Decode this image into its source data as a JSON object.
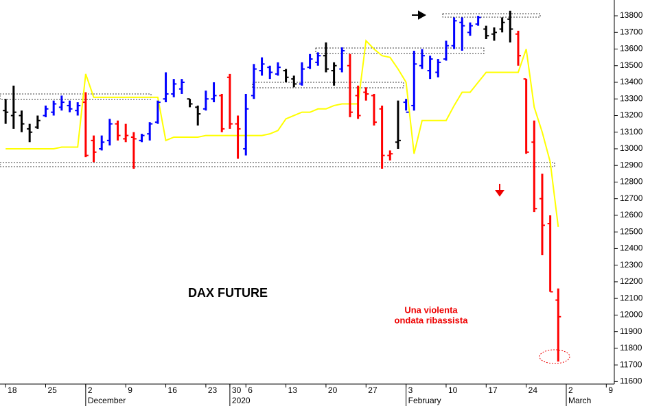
{
  "chart_data": {
    "type": "ohlc",
    "title": "DAX FUTURE",
    "annotation": [
      "Una violenta",
      "ondata ribassista"
    ],
    "x": [
      0,
      1,
      2,
      3,
      4,
      5,
      6,
      7,
      8,
      9,
      10,
      11,
      12,
      13,
      14,
      15,
      16,
      17,
      18,
      19,
      20,
      21,
      22,
      23,
      24,
      25,
      26,
      27,
      28,
      29,
      30,
      31,
      32,
      33,
      34,
      35,
      36,
      37,
      38,
      39,
      40,
      41,
      42,
      43,
      44,
      45,
      46,
      47,
      48,
      49,
      50,
      51,
      52,
      53,
      54,
      55,
      56,
      57,
      58,
      59,
      60,
      61,
      62,
      63,
      64,
      65,
      66,
      67,
      68,
      69
    ],
    "open": [
      13230,
      13200,
      13200,
      13120,
      13130,
      13200,
      13220,
      13250,
      13260,
      13230,
      13280,
      13050,
      13000,
      13050,
      13150,
      13060,
      13070,
      13050,
      13090,
      13160,
      13300,
      13330,
      13360,
      13300,
      13250,
      13240,
      13300,
      13320,
      13430,
      13150,
      13000,
      13320,
      13470,
      13490,
      13450,
      13470,
      13420,
      13390,
      13490,
      13520,
      13560,
      13470,
      13480,
      13500,
      13320,
      13340,
      13320,
      13240,
      12960,
      13040,
      13280,
      13260,
      13500,
      13470,
      13460,
      13540,
      13620,
      13760,
      13700,
      13750,
      13720,
      13690,
      13720,
      13780,
      13690,
      13420,
      13040,
      12700,
      12550,
      12090
    ],
    "high": [
      13300,
      13380,
      13230,
      13150,
      13200,
      13260,
      13290,
      13320,
      13290,
      13280,
      13340,
      13080,
      13080,
      13180,
      13170,
      13150,
      13100,
      13090,
      13160,
      13290,
      13460,
      13420,
      13420,
      13300,
      13260,
      13350,
      13400,
      13330,
      13450,
      13200,
      13330,
      13510,
      13550,
      13500,
      13520,
      13480,
      13440,
      13520,
      13570,
      13580,
      13640,
      13520,
      13610,
      13570,
      13380,
      13370,
      13330,
      13260,
      12990,
      13290,
      13300,
      13590,
      13600,
      13560,
      13540,
      13650,
      13790,
      13790,
      13760,
      13800,
      13740,
      13730,
      13790,
      13830,
      13710,
      13420,
      13170,
      12850,
      12600,
      12160
    ],
    "low": [
      13150,
      13120,
      13100,
      13040,
      13120,
      13190,
      13200,
      13230,
      13220,
      13200,
      12950,
      12920,
      12990,
      13020,
      13050,
      13040,
      12880,
      13040,
      13050,
      13150,
      13280,
      13310,
      13330,
      13250,
      13140,
      13230,
      13280,
      13100,
      13120,
      12940,
      12960,
      13300,
      13440,
      13420,
      13440,
      13400,
      13370,
      13380,
      13480,
      13500,
      13460,
      13380,
      13460,
      13190,
      13180,
      13290,
      13140,
      12880,
      12930,
      13000,
      13230,
      13230,
      13480,
      13420,
      13430,
      13530,
      13600,
      13590,
      13680,
      13740,
      13660,
      13650,
      13700,
      13640,
      13500,
      12970,
      12620,
      12360,
      12140,
      11720
    ],
    "close": [
      13220,
      13220,
      13150,
      13100,
      13170,
      13240,
      13270,
      13280,
      13240,
      13260,
      12960,
      12980,
      13040,
      13150,
      13080,
      13080,
      13060,
      13080,
      13150,
      13280,
      13330,
      13390,
      13400,
      13270,
      13210,
      13300,
      13320,
      13120,
      13150,
      13120,
      13240,
      13480,
      13510,
      13460,
      13490,
      13430,
      13390,
      13480,
      13540,
      13560,
      13480,
      13500,
      13590,
      13220,
      13200,
      13330,
      13160,
      12960,
      12970,
      13050,
      13220,
      13510,
      13560,
      13540,
      13520,
      13620,
      13770,
      13740,
      13740,
      13790,
      13680,
      13700,
      13760,
      13720,
      13560,
      12980,
      12640,
      12540,
      12140,
      11990
    ],
    "colors": [
      "#000000",
      "#000000",
      "#000000",
      "#000000",
      "#000000",
      "#0000ff",
      "#0000ff",
      "#0000ff",
      "#0000ff",
      "#0000ff",
      "#ff0000",
      "#ff0000",
      "#0000ff",
      "#0000ff",
      "#ff0000",
      "#ff0000",
      "#ff0000",
      "#0000ff",
      "#0000ff",
      "#0000ff",
      "#0000ff",
      "#0000ff",
      "#0000ff",
      "#000000",
      "#000000",
      "#0000ff",
      "#0000ff",
      "#ff0000",
      "#ff0000",
      "#ff0000",
      "#0000ff",
      "#0000ff",
      "#0000ff",
      "#0000ff",
      "#0000ff",
      "#000000",
      "#000000",
      "#0000ff",
      "#0000ff",
      "#0000ff",
      "#000000",
      "#000000",
      "#0000ff",
      "#ff0000",
      "#ff0000",
      "#ff0000",
      "#ff0000",
      "#ff0000",
      "#ff0000",
      "#000000",
      "#0000ff",
      "#0000ff",
      "#0000ff",
      "#0000ff",
      "#0000ff",
      "#0000ff",
      "#0000ff",
      "#0000ff",
      "#0000ff",
      "#0000ff",
      "#000000",
      "#000000",
      "#000000",
      "#000000",
      "#ff0000",
      "#ff0000",
      "#ff0000",
      "#ff0000",
      "#ff0000",
      "#ff0000"
    ],
    "overlay": {
      "type": "line",
      "color": "#ffff00",
      "values": [
        13000,
        13000,
        13000,
        13000,
        13000,
        13000,
        13000,
        13010,
        13010,
        13010,
        13450,
        13310,
        13310,
        13310,
        13310,
        13310,
        13310,
        13310,
        13310,
        13310,
        13050,
        13070,
        13070,
        13070,
        13070,
        13080,
        13080,
        13080,
        13080,
        13080,
        13080,
        13080,
        13080,
        13090,
        13110,
        13180,
        13200,
        13220,
        13220,
        13240,
        13240,
        13260,
        13270,
        13270,
        13270,
        13650,
        13600,
        13560,
        13550,
        13480,
        13400,
        12970,
        13170,
        13170,
        13170,
        13170,
        13260,
        13340,
        13340,
        13400,
        13460,
        13460,
        13460,
        13460,
        13460,
        13600,
        13250,
        13100,
        12920,
        12530
      ]
    },
    "xlim": [
      -0.7,
      76
    ],
    "xticks": [
      {
        "value": 0,
        "label": "18"
      },
      {
        "value": 5,
        "label": "25"
      },
      {
        "value": 10,
        "label": "2"
      },
      {
        "value": 15,
        "label": "9"
      },
      {
        "value": 20,
        "label": "16"
      },
      {
        "value": 25,
        "label": "23"
      },
      {
        "value": 28,
        "label": "30"
      },
      {
        "value": 30,
        "label": "6"
      },
      {
        "value": 35,
        "label": "13"
      },
      {
        "value": 40,
        "label": "20"
      },
      {
        "value": 45,
        "label": "27"
      },
      {
        "value": 50,
        "label": "3"
      },
      {
        "value": 55,
        "label": "10"
      },
      {
        "value": 60,
        "label": "17"
      },
      {
        "value": 65,
        "label": "24"
      },
      {
        "value": 70,
        "label": "2"
      },
      {
        "value": 75,
        "label": "9"
      }
    ],
    "xticks_major": [
      {
        "value": 10,
        "label": "December"
      },
      {
        "value": 28,
        "label": "2020"
      },
      {
        "value": 50,
        "label": "February"
      },
      {
        "value": 70,
        "label": "March"
      }
    ],
    "ylim": [
      11585,
      13895
    ],
    "yticks": [
      11600,
      11700,
      11800,
      11900,
      12000,
      12100,
      12200,
      12300,
      12400,
      12500,
      12600,
      12700,
      12800,
      12900,
      13000,
      13100,
      13200,
      13300,
      13400,
      13500,
      13600,
      13700,
      13800
    ]
  }
}
